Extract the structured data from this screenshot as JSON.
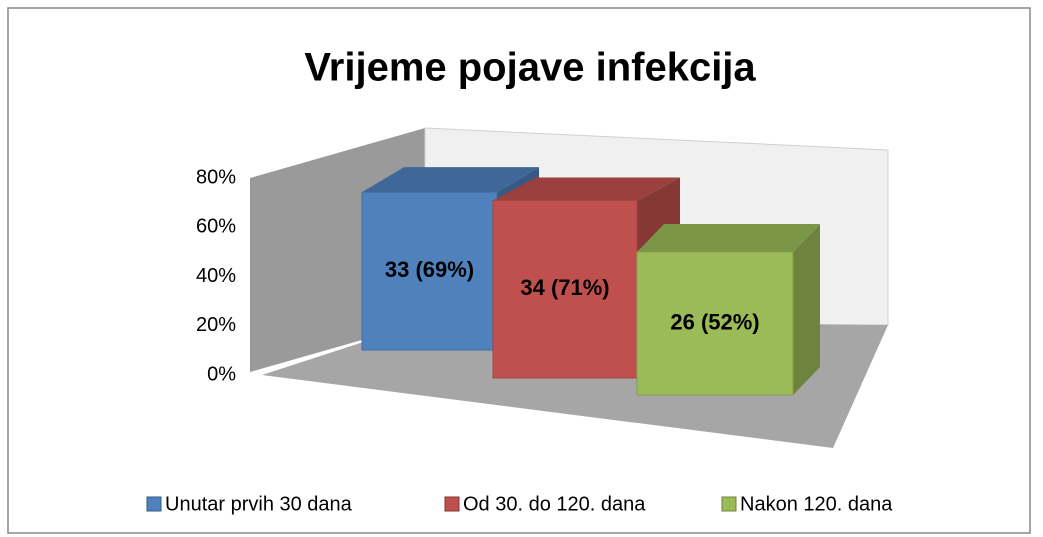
{
  "chart_data": {
    "type": "bar3d",
    "title": "Vrijeme pojave infekcija",
    "series": [
      {
        "name": "Unutar prvih 30 dana",
        "color": "#4f81bd",
        "values": [
          69
        ],
        "value_labels": [
          "33 (69%)"
        ]
      },
      {
        "name": "Od 30. do 120. dana",
        "color": "#c0504d",
        "values": [
          71
        ],
        "value_labels": [
          "34 (71%)"
        ]
      },
      {
        "name": "Nakon 120. dana",
        "color": "#9bbb59",
        "values": [
          52
        ],
        "value_labels": [
          "26 (52%)"
        ]
      }
    ],
    "ylim": [
      0,
      80
    ],
    "yticks": [
      {
        "value": 0,
        "label": "0%"
      },
      {
        "value": 20,
        "label": "20%"
      },
      {
        "value": 40,
        "label": "40%"
      },
      {
        "value": 60,
        "label": "60%"
      },
      {
        "value": 80,
        "label": "80%"
      }
    ],
    "legend": "bottom",
    "grid": false
  }
}
